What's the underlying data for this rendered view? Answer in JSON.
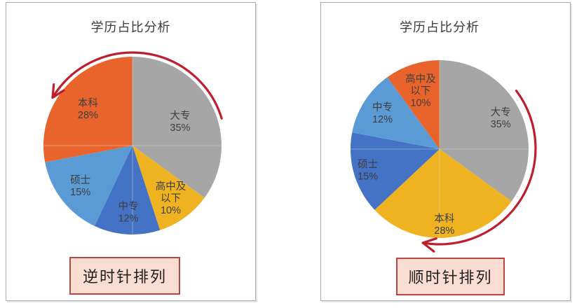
{
  "chart_data": [
    {
      "type": "pie",
      "title": "学历占比分析",
      "unit": "%",
      "direction": "counterclockwise",
      "start_angle": "top",
      "slice_order": "visual-clockwise-from-12",
      "slices": [
        {
          "label": "大专",
          "value": 35,
          "pct_label": "35%",
          "color": "#A6A6A6",
          "label_lines": [
            "大专",
            "35%"
          ],
          "label_r": 0.6
        },
        {
          "label": "高中及以下",
          "value": 10,
          "pct_label": "10%",
          "color": "#EFB321",
          "label_lines": [
            "高中及",
            "以下",
            "10%"
          ],
          "label_r": 0.73
        },
        {
          "label": "中专",
          "value": 12,
          "pct_label": "12%",
          "color": "#4472C4",
          "label_lines": [
            "中专",
            "12%"
          ],
          "label_r": 0.75
        },
        {
          "label": "硕士",
          "value": 15,
          "pct_label": "15%",
          "color": "#5B9BD5",
          "label_lines": [
            "硕士",
            "15%"
          ],
          "label_r": 0.74
        },
        {
          "label": "本科",
          "value": 28,
          "pct_label": "28%",
          "color": "#E8642C",
          "label_lines": [
            "本科",
            "28%"
          ],
          "label_r": 0.65
        }
      ],
      "label_color": "#3F3F3F",
      "arrow_color": "#BE1E2D",
      "crosshair_color": "#D9D9D9",
      "caption": {
        "text": "逆时针排列",
        "fill": "#FADDD2",
        "border": "#BC4542",
        "text_color": "#202020"
      }
    },
    {
      "type": "pie",
      "title": "学历占比分析",
      "unit": "%",
      "direction": "clockwise",
      "start_angle": "top",
      "slice_order": "visual-clockwise-from-12",
      "slices": [
        {
          "label": "大专",
          "value": 35,
          "pct_label": "35%",
          "color": "#A6A6A6",
          "label_lines": [
            "大专",
            "35%"
          ],
          "label_r": 0.77
        },
        {
          "label": "本科",
          "value": 28,
          "pct_label": "28%",
          "color": "#EFB321",
          "label_lines": [
            "本科",
            "28%"
          ],
          "label_r": 0.85
        },
        {
          "label": "硕士",
          "value": 15,
          "pct_label": "15%",
          "color": "#4472C4",
          "label_lines": [
            "硕士",
            "15%"
          ],
          "label_r": 0.84
        },
        {
          "label": "中专",
          "value": 12,
          "pct_label": "12%",
          "color": "#5B9BD5",
          "label_lines": [
            "中专",
            "12%"
          ],
          "label_r": 0.76
        },
        {
          "label": "高中及以下",
          "value": 10,
          "pct_label": "10%",
          "color": "#E8642C",
          "label_lines": [
            "高中及",
            "以下",
            "10%"
          ],
          "label_r": 0.69
        }
      ],
      "label_color": "#3F3F3F",
      "arrow_color": "#BE1E2D",
      "crosshair_color": "#D9D9D9",
      "caption": {
        "text": "顺时针排列",
        "fill": "#FADDD2",
        "border": "#BC4542",
        "text_color": "#202020"
      }
    }
  ]
}
